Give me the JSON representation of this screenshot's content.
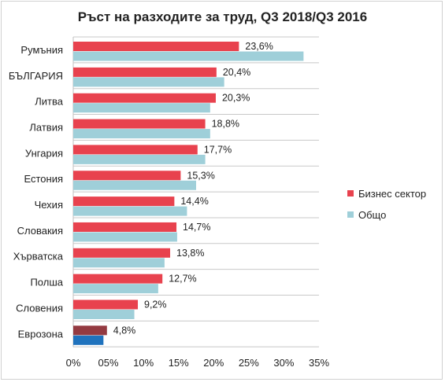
{
  "chart_data": {
    "type": "bar",
    "orientation": "horizontal",
    "title": "Ръст на разходите за труд, Q3 2018/Q3 2016",
    "categories": [
      "Румъния",
      "БЪЛГАРИЯ",
      "Литва",
      "Латвия",
      "Унгария",
      "Естония",
      "Чехия",
      "Словакия",
      "Хърватска",
      "Полша",
      "Словения",
      "Еврозона"
    ],
    "series": [
      {
        "name": "Бизнес сектор",
        "color": "#e8424e",
        "values": [
          23.6,
          20.4,
          20.3,
          18.8,
          17.7,
          15.3,
          14.4,
          14.7,
          13.8,
          12.7,
          9.2,
          4.8
        ],
        "labels": [
          "23,6%",
          "20,4%",
          "20,3%",
          "18,8%",
          "17,7%",
          "15,3%",
          "14,4%",
          "14,7%",
          "13,8%",
          "12,7%",
          "9,2%",
          "4,8%"
        ]
      },
      {
        "name": "Общо",
        "color": "#9fcfd9",
        "values": [
          32.8,
          21.5,
          19.5,
          19.5,
          18.8,
          17.5,
          16.2,
          14.8,
          13.0,
          12.1,
          8.7,
          4.3
        ]
      }
    ],
    "highlight": {
      "category": "Еврозона",
      "colors": [
        "#943a41",
        "#1f72bd"
      ]
    },
    "xlim": [
      0,
      35
    ],
    "xticks": [
      0,
      5,
      10,
      15,
      20,
      25,
      30,
      35
    ],
    "xtick_labels": [
      "0%",
      "05%",
      "10%",
      "15%",
      "20%",
      "25%",
      "30%",
      "35%"
    ],
    "gridlines": "horizontal-category-separators",
    "legend": "right"
  }
}
